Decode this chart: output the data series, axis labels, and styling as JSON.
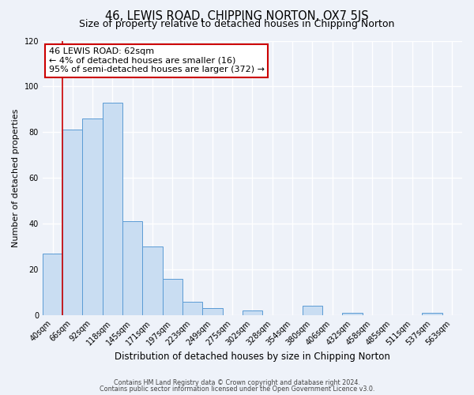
{
  "title": "46, LEWIS ROAD, CHIPPING NORTON, OX7 5JS",
  "subtitle": "Size of property relative to detached houses in Chipping Norton",
  "xlabel": "Distribution of detached houses by size in Chipping Norton",
  "ylabel": "Number of detached properties",
  "bin_labels": [
    "40sqm",
    "66sqm",
    "92sqm",
    "118sqm",
    "145sqm",
    "171sqm",
    "197sqm",
    "223sqm",
    "249sqm",
    "275sqm",
    "302sqm",
    "328sqm",
    "354sqm",
    "380sqm",
    "406sqm",
    "432sqm",
    "458sqm",
    "485sqm",
    "511sqm",
    "537sqm",
    "563sqm"
  ],
  "bar_values": [
    27,
    81,
    86,
    93,
    41,
    30,
    16,
    6,
    3,
    0,
    2,
    0,
    0,
    4,
    0,
    1,
    0,
    0,
    0,
    1,
    0
  ],
  "bar_color": "#c9ddf2",
  "bar_edge_color": "#5b9bd5",
  "ylim": [
    0,
    120
  ],
  "yticks": [
    0,
    20,
    40,
    60,
    80,
    100,
    120
  ],
  "vline_x_index": 1,
  "vline_color": "#cc0000",
  "annotation_line1": "46 LEWIS ROAD: 62sqm",
  "annotation_line2": "← 4% of detached houses are smaller (16)",
  "annotation_line3": "95% of semi-detached houses are larger (372) →",
  "footer_line1": "Contains HM Land Registry data © Crown copyright and database right 2024.",
  "footer_line2": "Contains public sector information licensed under the Open Government Licence v3.0.",
  "background_color": "#eef2f9",
  "grid_color": "#ffffff",
  "title_fontsize": 10.5,
  "subtitle_fontsize": 9,
  "ylabel_fontsize": 8,
  "xlabel_fontsize": 8.5,
  "tick_fontsize": 7,
  "annotation_fontsize": 8,
  "footer_fontsize": 5.8
}
